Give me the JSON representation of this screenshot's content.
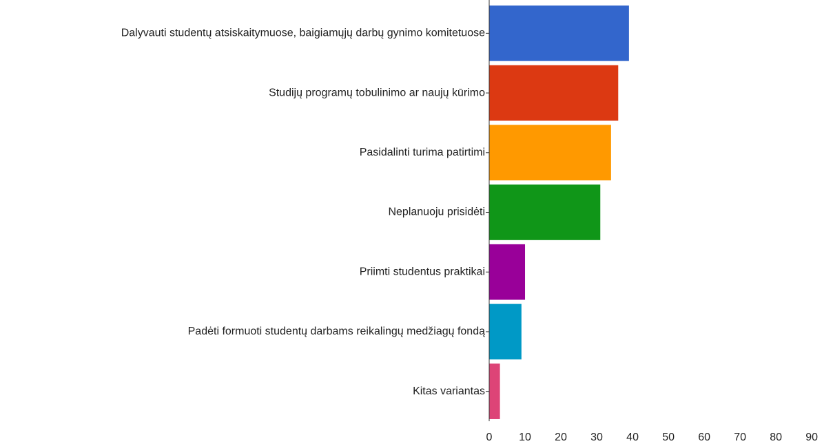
{
  "chart_data": {
    "type": "bar",
    "orientation": "horizontal",
    "categories": [
      "Dalyvauti studentų atsiskaitymuose, baigiamųjų darbų gynimo komitetuose",
      "Studijų programų tobulinimo ar naujų kūrimo",
      "Pasidalinti turima patirtimi",
      "Neplanuoju  prisidėti",
      "Priimti studentus praktikai",
      "Padėti formuoti  studentų darbams reikalingų  medžiagų fondą",
      "Kitas variantas"
    ],
    "values": [
      39,
      36,
      34,
      31,
      10,
      9,
      3
    ],
    "colors": [
      "#3366cc",
      "#dc3912",
      "#ff9900",
      "#109618",
      "#990099",
      "#0099c6",
      "#dd4477"
    ],
    "xlim": [
      0,
      94
    ],
    "xticks": [
      0,
      10,
      20,
      30,
      40,
      50,
      60,
      70,
      80,
      90
    ],
    "grid": false
  }
}
